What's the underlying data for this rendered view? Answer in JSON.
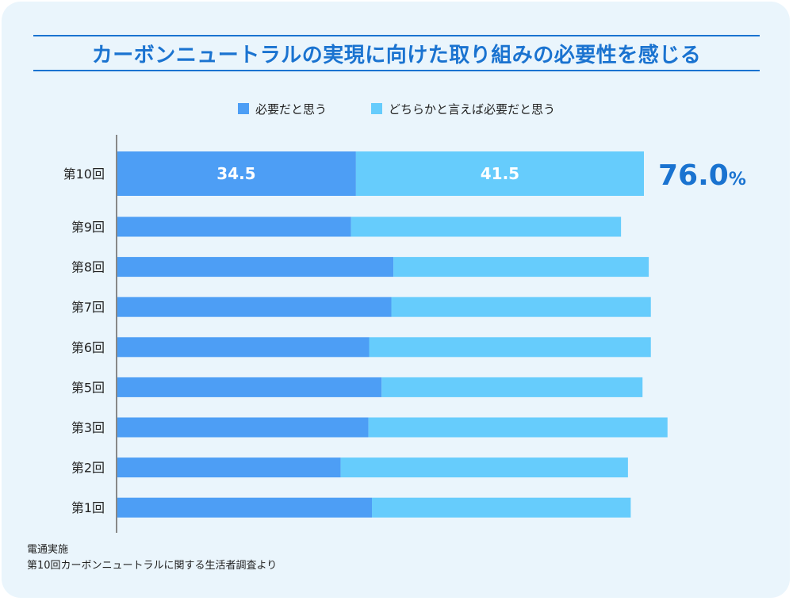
{
  "title": "カーボンニュートラルの実現に向けた取り組みの必要性を感じる",
  "colors": {
    "necessary": "#4d9ef5",
    "somewhat_necessary": "#66ccfc",
    "accent": "#1a73d0",
    "axis": "#888888"
  },
  "legend": {
    "necessary": "必要だと思う",
    "somewhat_necessary": "どちらかと言えば必要だと思う"
  },
  "highlight": {
    "total_value": "76.0",
    "total_unit": "%"
  },
  "chart_data": {
    "type": "bar",
    "orientation": "horizontal",
    "stacked": true,
    "categories": [
      "第10回",
      "第9回",
      "第8回",
      "第7回",
      "第6回",
      "第5回",
      "第3回",
      "第2回",
      "第1回"
    ],
    "series": [
      {
        "name": "必要だと思う",
        "values": [
          34.5,
          33.8,
          39.9,
          39.6,
          36.4,
          38.2,
          36.3,
          32.3,
          36.8
        ]
      },
      {
        "name": "どちらかと言えば必要だと思う",
        "values": [
          41.5,
          38.9,
          36.8,
          37.4,
          40.6,
          37.6,
          43.1,
          41.4,
          37.3
        ]
      }
    ],
    "data_labels_row0": [
      "34.5",
      "41.5"
    ],
    "xlim": [
      0,
      100
    ],
    "grid": false,
    "legend_position": "top-center"
  },
  "footer": {
    "line1": "電通実施",
    "line2": "第10回カーボンニュートラルに関する生活者調査より"
  }
}
